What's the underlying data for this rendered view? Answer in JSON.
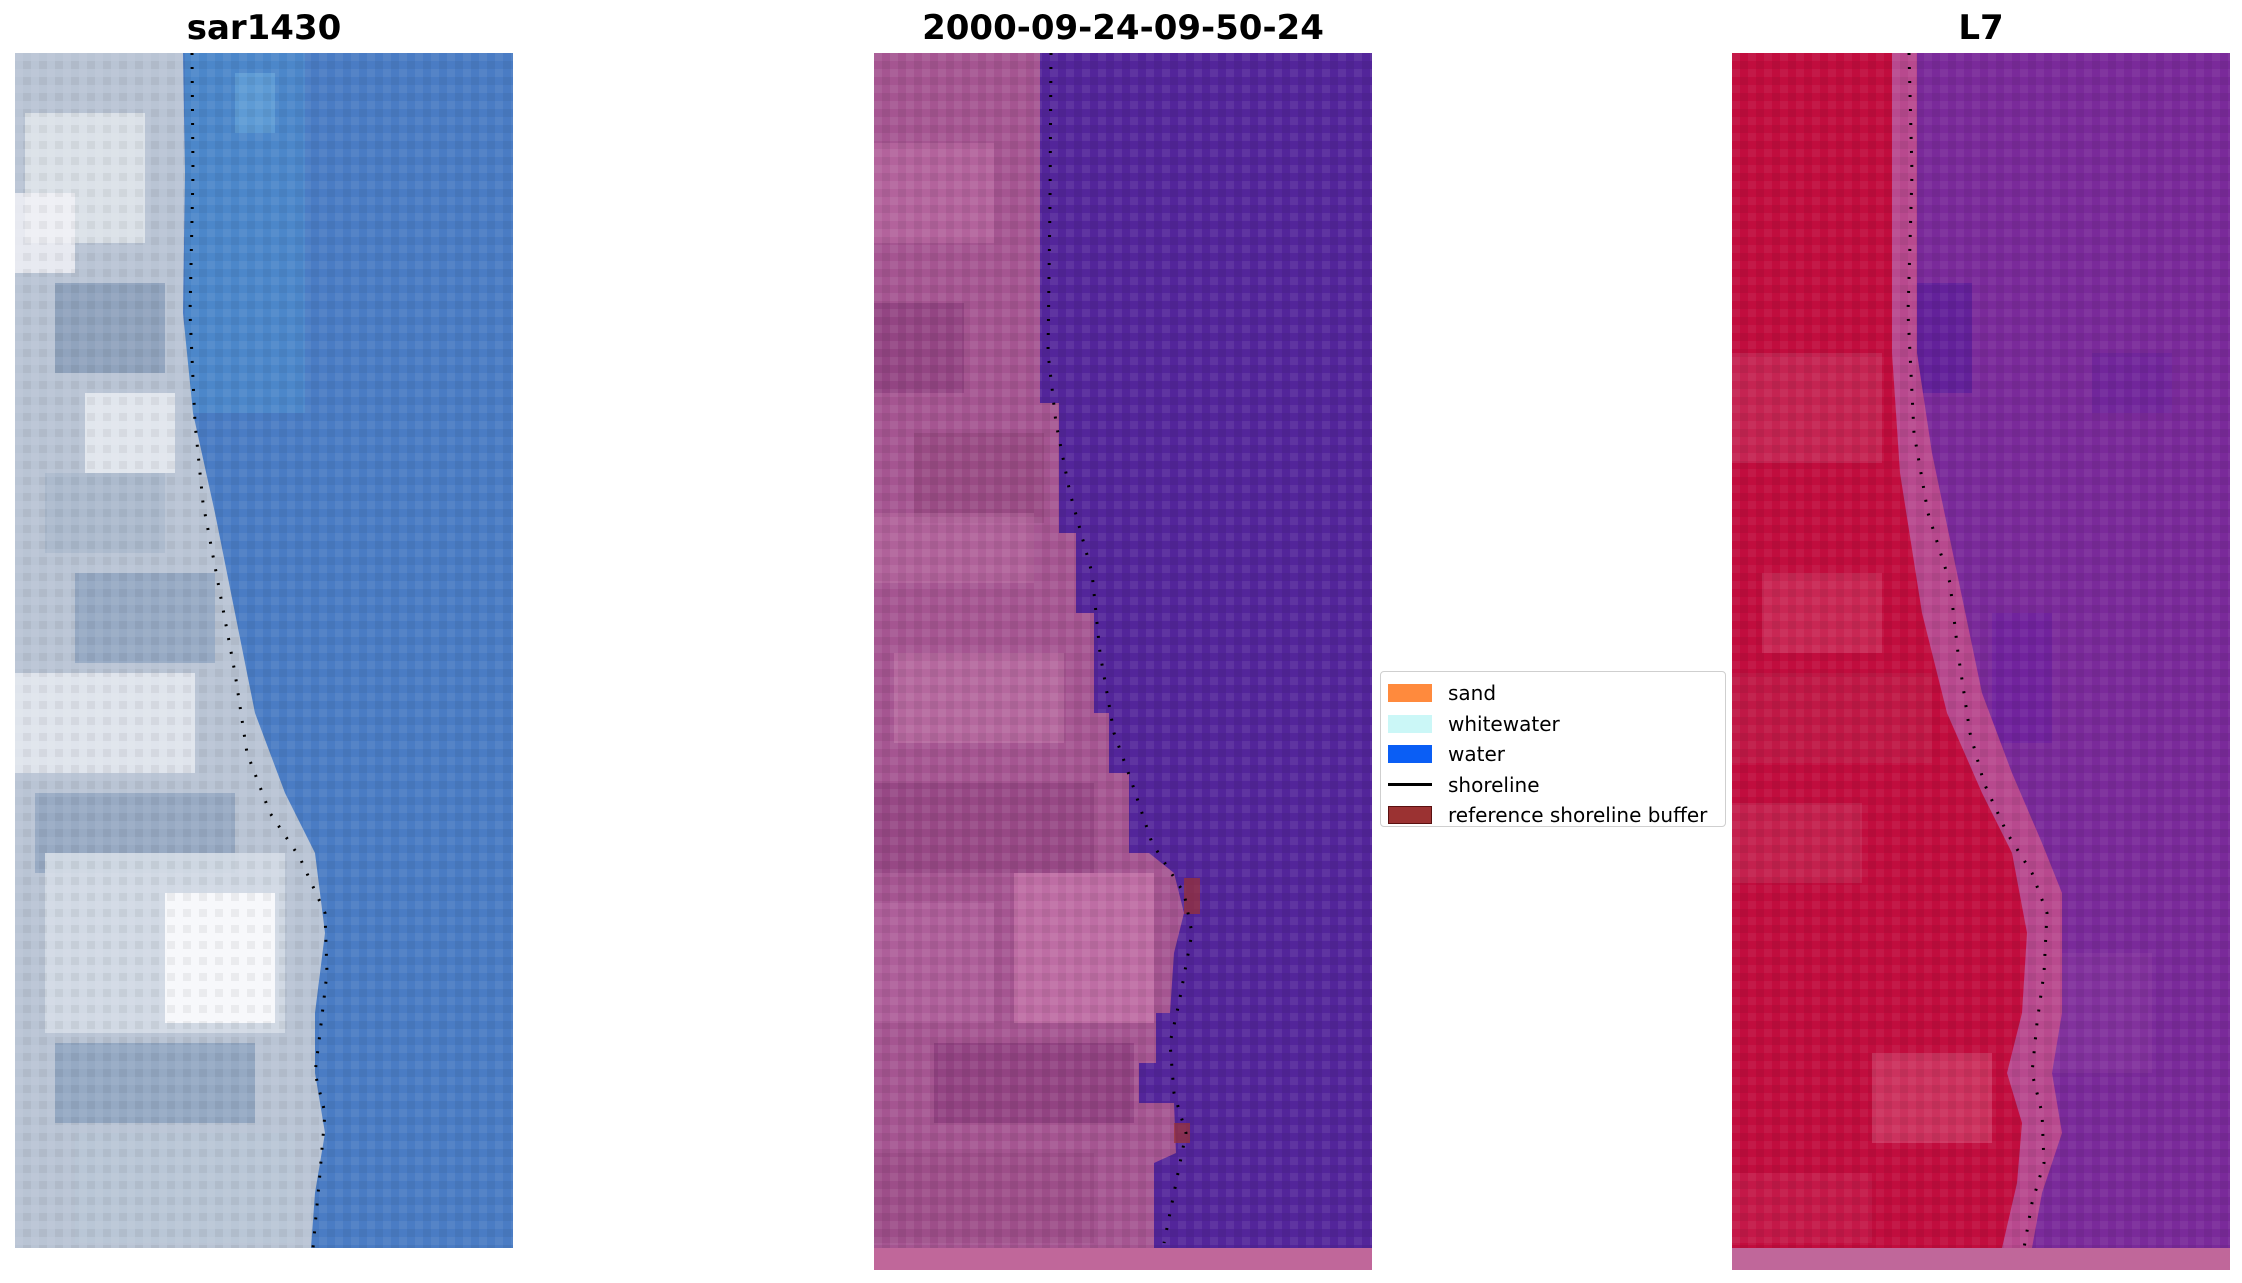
{
  "panels": [
    {
      "title": "sar1430"
    },
    {
      "title": "2000-09-24-09-50-24"
    },
    {
      "title": "L7"
    }
  ],
  "legend": {
    "items": [
      {
        "label": "sand",
        "color": "#ff8a3d",
        "kind": "patch"
      },
      {
        "label": "whitewater",
        "color": "#cbf7f7",
        "kind": "patch"
      },
      {
        "label": "water",
        "color": "#0a5ef5",
        "kind": "patch"
      },
      {
        "label": "shoreline",
        "color": "#000000",
        "kind": "line"
      },
      {
        "label": "reference shoreline buffer",
        "color": "#9b3232",
        "kind": "patch-outlined"
      }
    ]
  },
  "colors": {
    "rgb_water": "#4a7cc4",
    "rgb_land": "#c8d0dc",
    "classified_water": "#53259a",
    "classified_land": "#a55591",
    "buffer_strip": "#c0679a",
    "index_water": "#7a2a9a",
    "index_land": "#c10d3e"
  }
}
